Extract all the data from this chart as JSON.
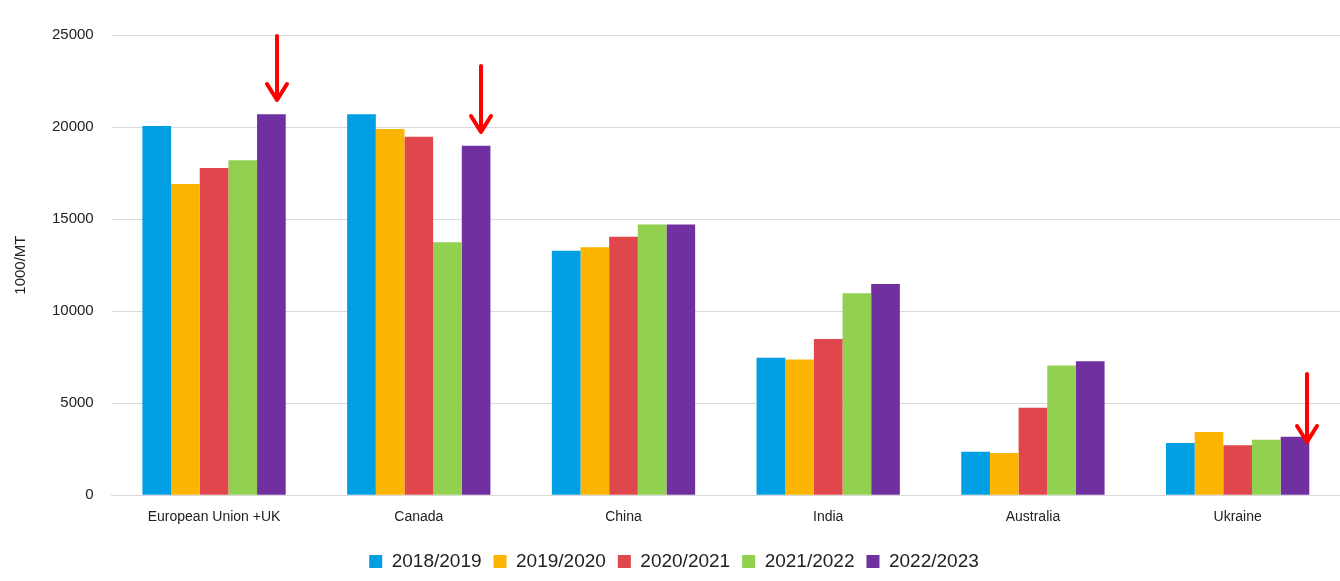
{
  "chart_data": {
    "type": "bar",
    "ylabel": "1000/MT",
    "categories": [
      "European Union +UK",
      "Canada",
      "China",
      "India",
      "Australia",
      "Ukraine"
    ],
    "series": [
      {
        "name": "2018/2019",
        "color": "#009fe3",
        "values": [
          20050,
          20700,
          13280,
          7470,
          2360,
          2840
        ]
      },
      {
        "name": "2019/2020",
        "color": "#fbb400",
        "values": [
          16900,
          19900,
          13470,
          7370,
          2290,
          3440
        ]
      },
      {
        "name": "2020/2021",
        "color": "#e0474c",
        "values": [
          17780,
          19470,
          14040,
          8480,
          4750,
          2720
        ]
      },
      {
        "name": "2021/2022",
        "color": "#92d050",
        "values": [
          18200,
          13740,
          14700,
          10970,
          7040,
          3010
        ]
      },
      {
        "name": "2022/2023",
        "color": "#7030a0",
        "values": [
          20700,
          18990,
          14700,
          11470,
          7280,
          3180
        ]
      }
    ],
    "ylim": [
      0,
      25000
    ],
    "yticks": [
      0,
      5000,
      10000,
      15000,
      20000,
      25000
    ],
    "grid": "y",
    "legend": "bottom"
  }
}
